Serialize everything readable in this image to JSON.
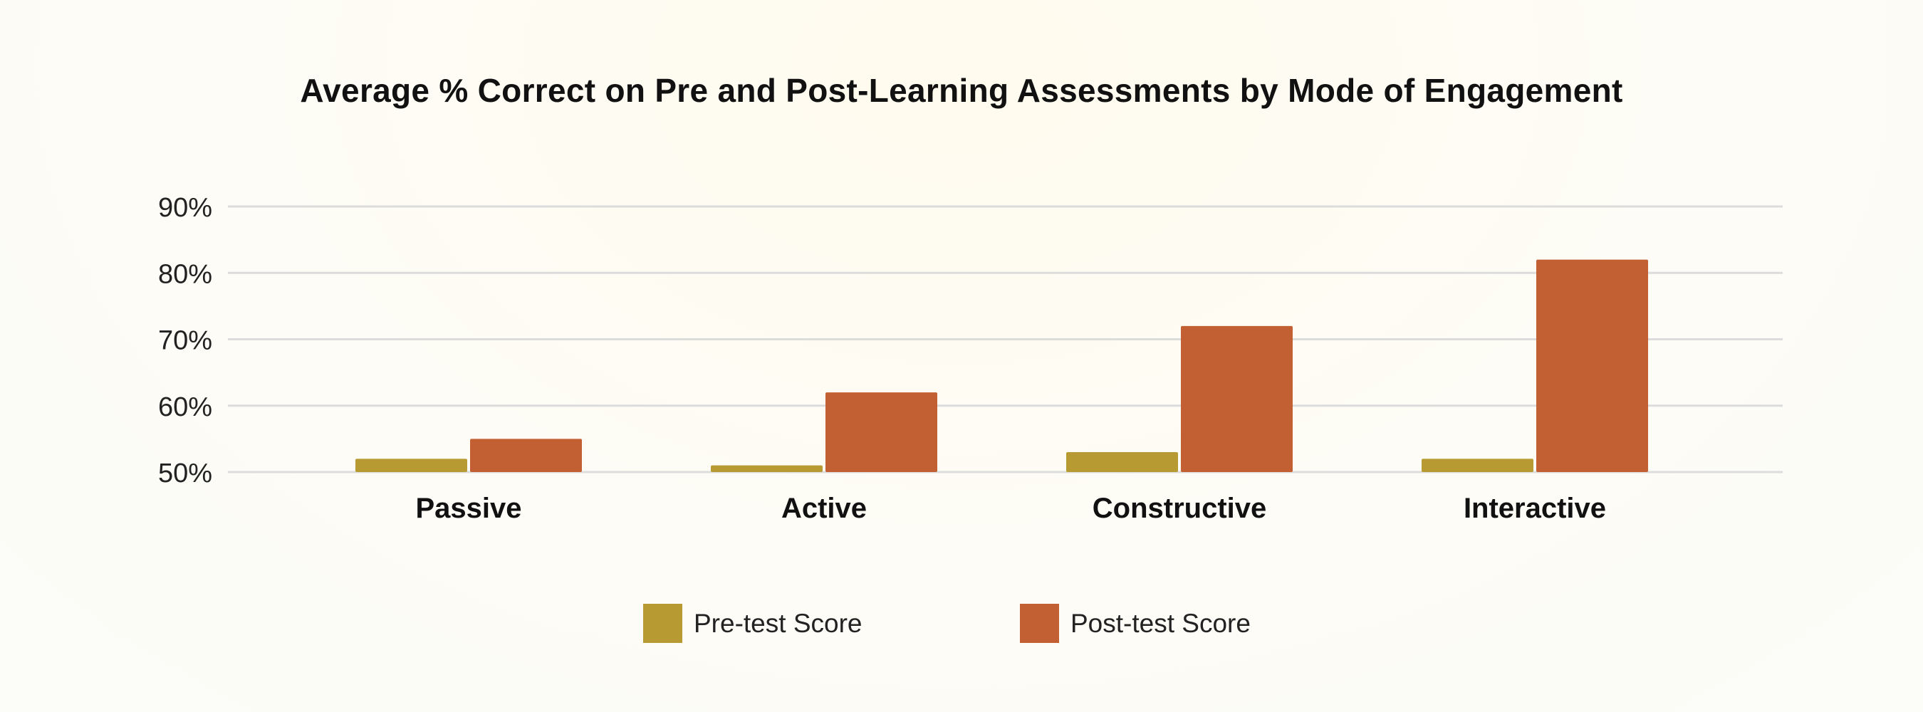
{
  "chart_data": {
    "type": "bar",
    "title": "Average % Correct on Pre and Post-Learning Assessments by Mode of Engagement",
    "xlabel": "",
    "ylabel": "",
    "categories": [
      "Passive",
      "Active",
      "Constructive",
      "Interactive"
    ],
    "series": [
      {
        "name": "Pre-test Score",
        "values": [
          52,
          51,
          53,
          52
        ],
        "color": "#b89a33"
      },
      {
        "name": "Post-test Score",
        "values": [
          55,
          62,
          72,
          82
        ],
        "color": "#c26033"
      }
    ],
    "ylim": [
      50,
      90
    ],
    "yticks": [
      "50%",
      "60%",
      "70%",
      "80%",
      "90%"
    ],
    "grid": true,
    "legend_position": "bottom"
  }
}
